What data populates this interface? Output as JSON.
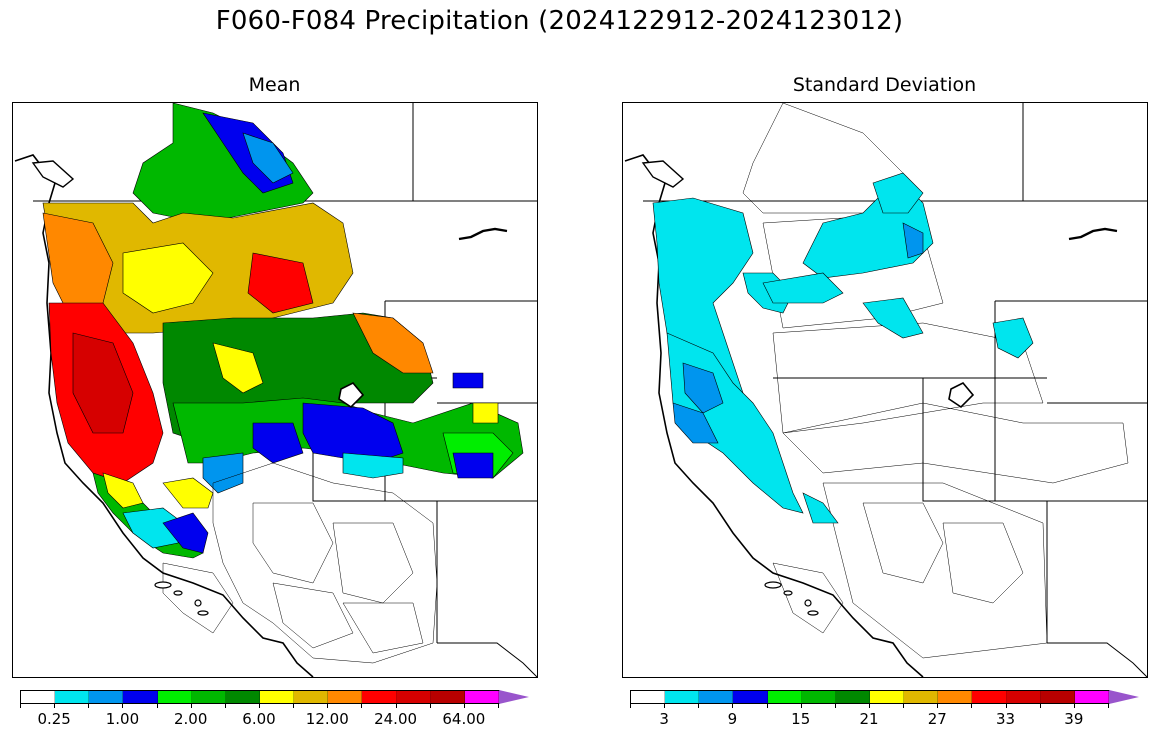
{
  "title": "F060-F084 Precipitation (2024122912-2024123012)",
  "panels": {
    "mean": {
      "title": "Mean",
      "colorbar_colors": [
        "#ffffff",
        "#00e5ee",
        "#0095ee",
        "#0000ee",
        "#00ee00",
        "#00b800",
        "#008800",
        "#ffff00",
        "#e0b800",
        "#ff8800",
        "#ff0000",
        "#d60000",
        "#b80000",
        "#ff00ff",
        "#9955cc"
      ],
      "tick_labels": [
        "0.25",
        "1.00",
        "2.00",
        "6.00",
        "12.00",
        "24.00",
        "64.00"
      ],
      "extend_arrow_color": "#9955cc"
    },
    "stddev": {
      "title": "Standard Deviation",
      "colorbar_colors": [
        "#ffffff",
        "#00e5ee",
        "#0095ee",
        "#0000ee",
        "#00ee00",
        "#00b800",
        "#008800",
        "#ffff00",
        "#e0b800",
        "#ff8800",
        "#ff0000",
        "#d60000",
        "#b80000",
        "#ff00ff",
        "#9955cc"
      ],
      "tick_labels": [
        "3",
        "9",
        "15",
        "21",
        "27",
        "33",
        "39"
      ],
      "extend_arrow_color": "#9955cc"
    }
  }
}
